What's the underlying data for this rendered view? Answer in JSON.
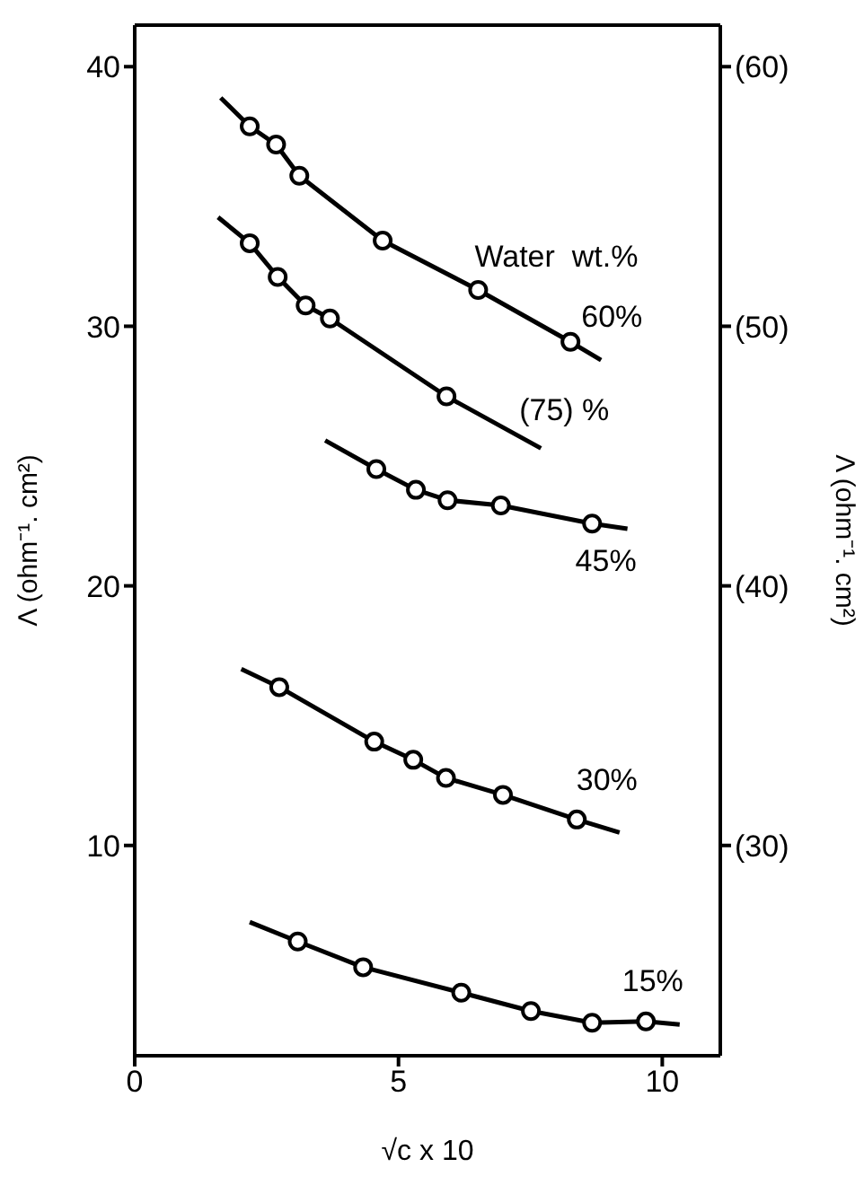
{
  "chart_data": {
    "type": "scatter",
    "xlabel": "√c x 10",
    "ylabel": "Λ (ohm⁻¹. cm²)",
    "y2label": "Λ (ohm⁻¹. cm²)",
    "xlim": [
      0,
      11.1
    ],
    "xticks": [
      0,
      5,
      10
    ],
    "ylim": [
      1.9,
      41.6
    ],
    "yticks": [
      10,
      20,
      30,
      40
    ],
    "y2lim": [
      21.9,
      61.6
    ],
    "y2ticks": [
      {
        "value": 30,
        "label": "(30)"
      },
      {
        "value": 40,
        "label": "(40)"
      },
      {
        "value": 50,
        "label": "(50)"
      },
      {
        "value": 60,
        "label": "(60)"
      }
    ],
    "marker": "circle",
    "series": [
      {
        "color": "#000000",
        "x": [
          2.18,
          2.68,
          3.12,
          4.7,
          6.51,
          8.26
        ],
        "values": [
          37.7,
          37.0,
          35.8,
          33.3,
          31.4,
          29.4
        ]
      },
      {
        "type": "line",
        "name": "60%",
        "marker": "none",
        "color": "#000000",
        "x": [
          1.63,
          2.18,
          2.68,
          3.12,
          4.7,
          6.51,
          8.26,
          8.84
        ],
        "values": [
          38.8,
          37.7,
          37.0,
          35.8,
          33.3,
          31.4,
          29.4,
          28.7
        ]
      },
      {
        "color": "#000000",
        "x": [
          2.18,
          2.71,
          3.24,
          3.7,
          5.91
        ],
        "values": [
          33.2,
          31.9,
          30.8,
          30.3,
          27.3
        ]
      },
      {
        "type": "line",
        "name": "(75) %",
        "marker": "none",
        "color": "#000000",
        "x": [
          1.58,
          2.18,
          2.71,
          3.24,
          3.7,
          5.91,
          7.7
        ],
        "values": [
          34.2,
          33.2,
          31.9,
          30.8,
          30.3,
          27.3,
          25.3
        ]
      },
      {
        "color": "#000000",
        "x": [
          4.58,
          5.33,
          5.93,
          6.94,
          8.67
        ],
        "values": [
          24.5,
          23.7,
          23.3,
          23.1,
          22.4
        ]
      },
      {
        "type": "line",
        "name": "45%",
        "marker": "none",
        "color": "#000000",
        "x": [
          3.61,
          4.58,
          5.33,
          5.93,
          6.94,
          8.67,
          9.34
        ],
        "values": [
          25.6,
          24.5,
          23.7,
          23.3,
          23.1,
          22.4,
          22.2
        ]
      },
      {
        "color": "#000000",
        "x": [
          2.74,
          4.54,
          5.28,
          5.9,
          6.98,
          8.38
        ],
        "values": [
          16.1,
          14.0,
          13.3,
          12.6,
          11.95,
          11.0
        ]
      },
      {
        "type": "line",
        "name": "30%",
        "marker": "none",
        "color": "#000000",
        "x": [
          2.02,
          2.74,
          4.54,
          5.28,
          5.9,
          6.98,
          8.38,
          9.19
        ],
        "values": [
          16.8,
          16.1,
          14.0,
          13.3,
          12.6,
          11.95,
          11.0,
          10.5
        ]
      },
      {
        "color": "#000000",
        "x": [
          3.09,
          4.33,
          6.19,
          7.51,
          8.67,
          9.69
        ],
        "values": [
          6.3,
          5.31,
          4.33,
          3.62,
          3.17,
          3.22
        ]
      },
      {
        "type": "line",
        "name": "15%",
        "marker": "none",
        "color": "#000000",
        "x": [
          2.18,
          3.09,
          4.33,
          6.19,
          7.51,
          8.67,
          9.69,
          10.33
        ],
        "values": [
          7.05,
          6.3,
          5.31,
          4.33,
          3.62,
          3.17,
          3.22,
          3.1
        ]
      }
    ],
    "annotations": [
      "Water  wt.%"
    ]
  }
}
